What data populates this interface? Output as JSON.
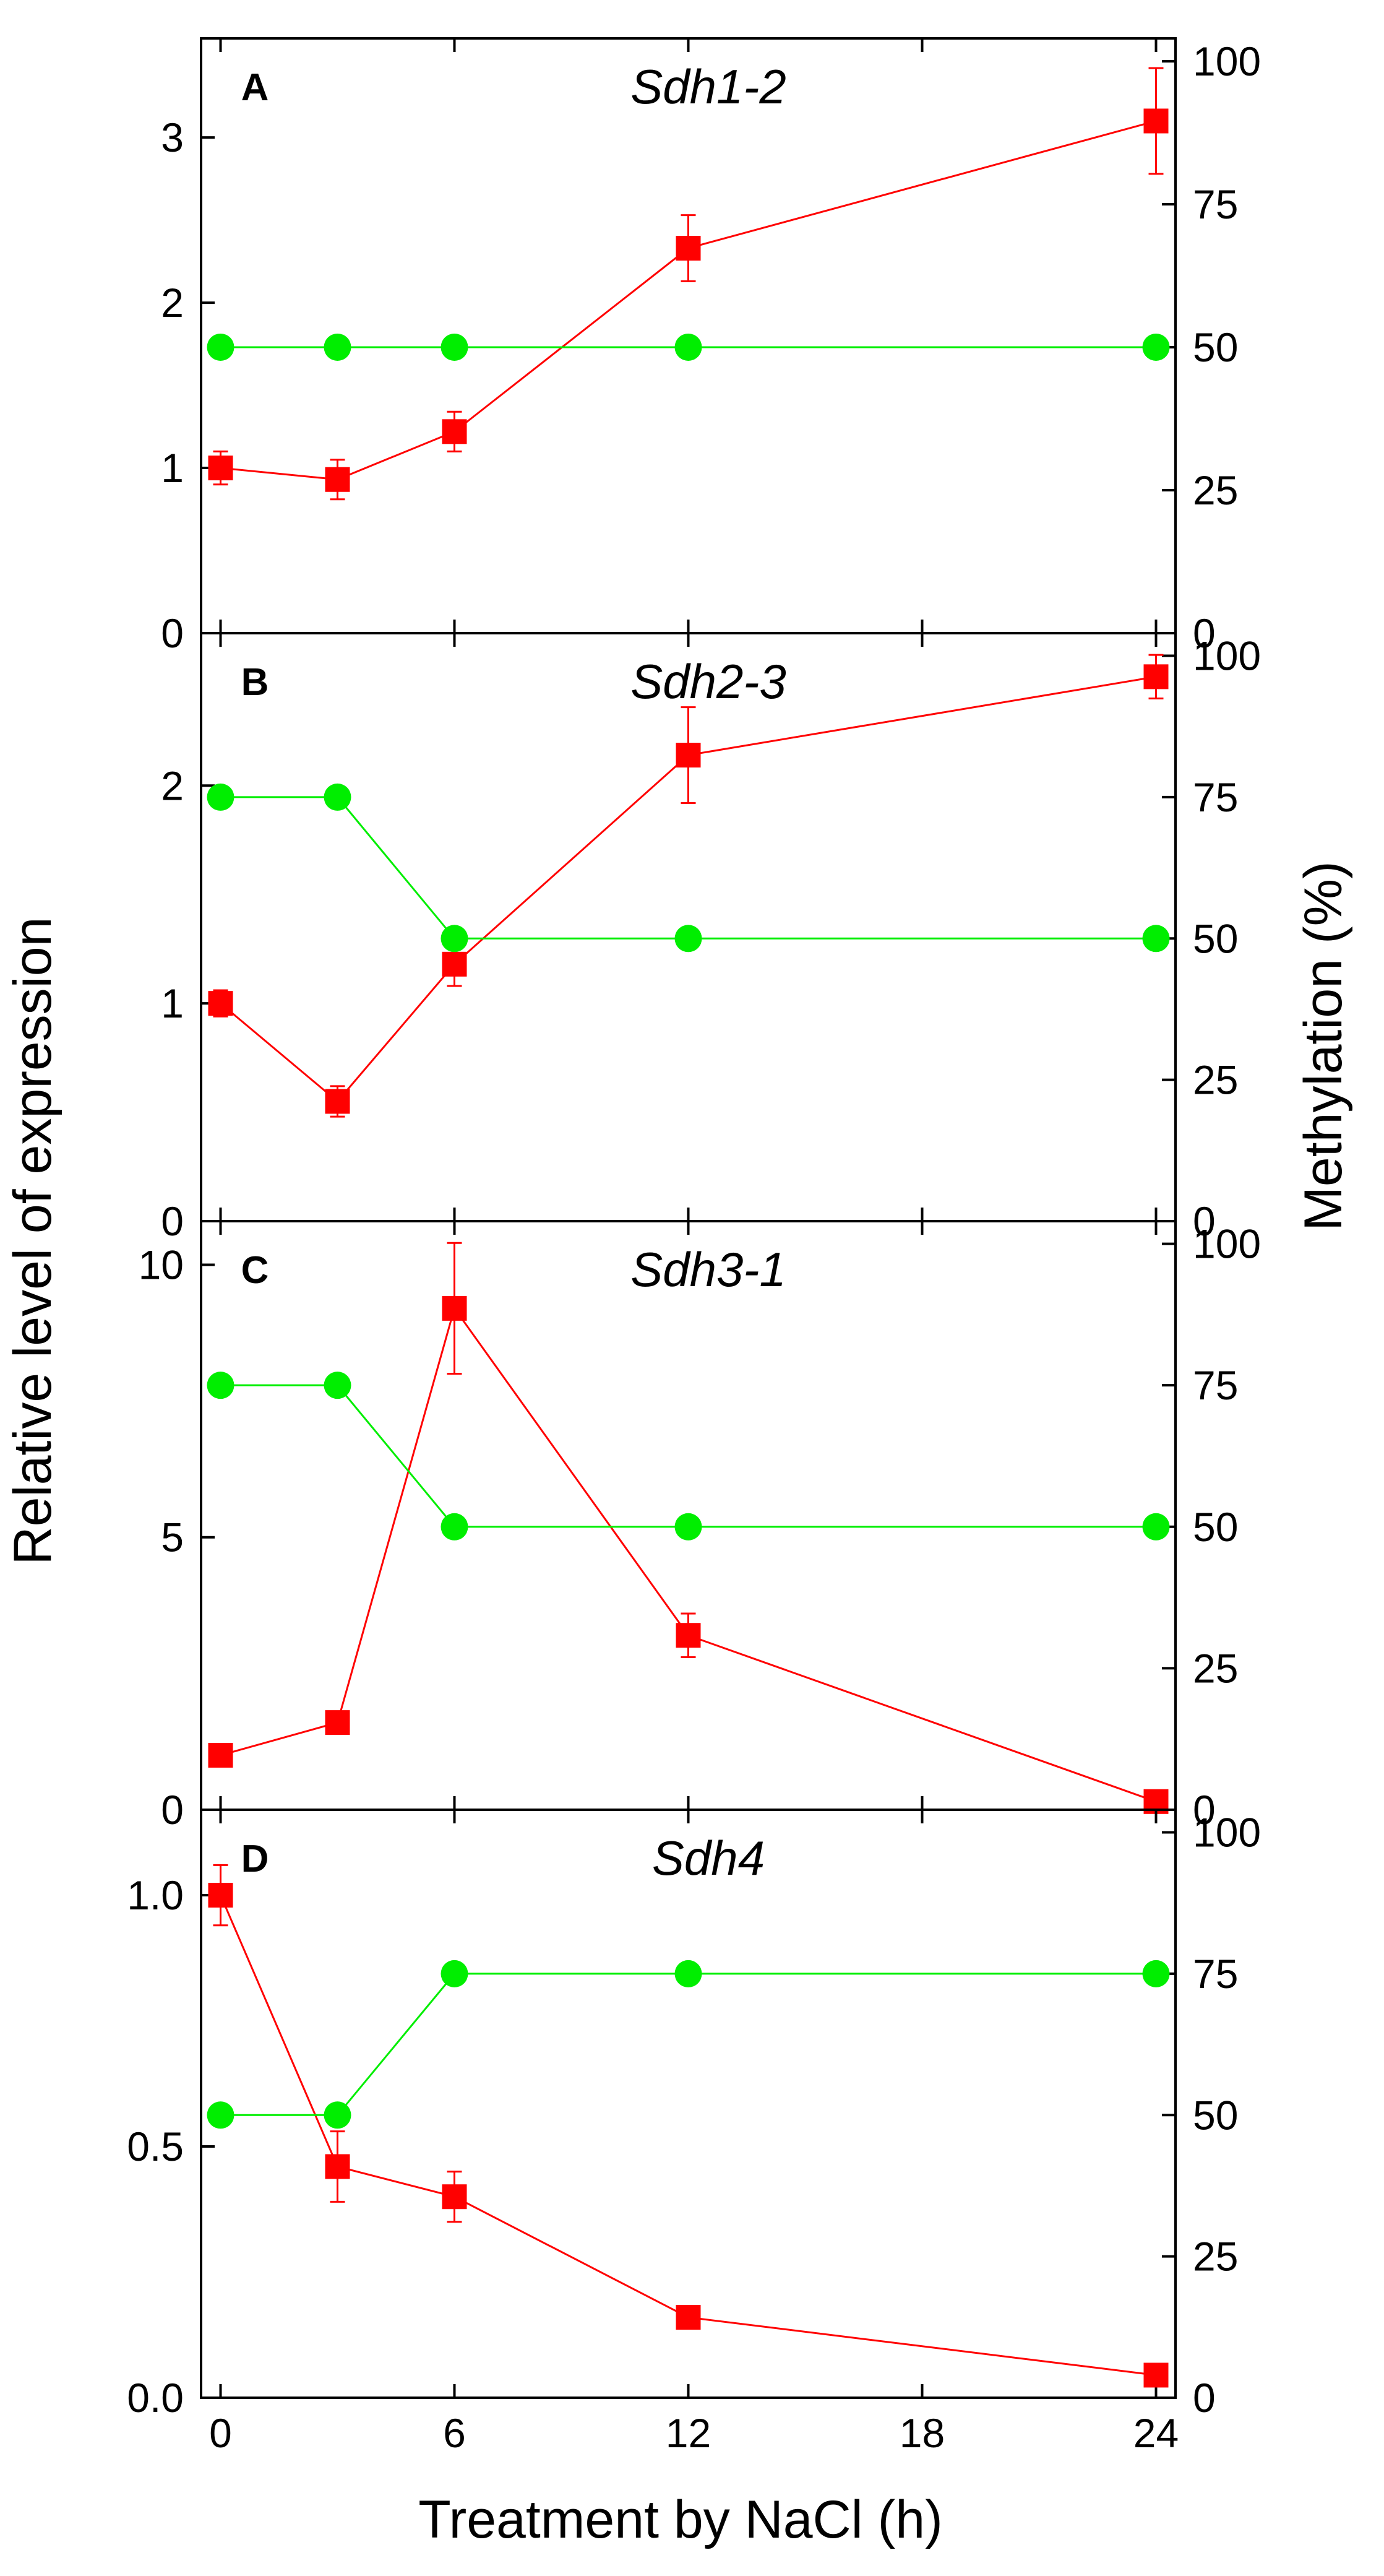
{
  "figure": {
    "ylabel_left": "Relative level of expression",
    "ylabel_right": "Methylation (%)",
    "xlabel": "Treatment by NaCl (h)"
  },
  "colors": {
    "expression": "#ff0000",
    "methylation": "#00ee00",
    "axis": "#000000"
  },
  "chart_data": [
    {
      "type": "line",
      "letter": "A",
      "title": "Sdh1-2",
      "x": [
        0,
        3,
        6,
        12,
        24
      ],
      "xlim": [
        -0.5,
        24.5
      ],
      "xticks": [
        0,
        6,
        12,
        18,
        24
      ],
      "xticklabels": [
        "0",
        "6",
        "12",
        "18",
        "24"
      ],
      "ylim_left": [
        0,
        3.6
      ],
      "yticks_left": [
        0,
        1,
        2,
        3
      ],
      "yticklabels_left": [
        "0",
        "1",
        "2",
        "3"
      ],
      "ylim_right": [
        0,
        104
      ],
      "yticks_right": [
        0,
        25,
        50,
        75,
        100
      ],
      "yticklabels_right": [
        "0",
        "25",
        "50",
        "75",
        "100"
      ],
      "series": [
        {
          "name": "Relative level of expression",
          "axis": "left",
          "marker": "square",
          "values": [
            1.0,
            0.93,
            1.22,
            2.33,
            3.1
          ],
          "errors": [
            0.1,
            0.12,
            0.12,
            0.2,
            0.32
          ]
        },
        {
          "name": "Methylation (%)",
          "axis": "right",
          "marker": "circle",
          "values": [
            50,
            50,
            50,
            50,
            50
          ]
        }
      ]
    },
    {
      "type": "line",
      "letter": "B",
      "title": "Sdh2-3",
      "x": [
        0,
        3,
        6,
        12,
        24
      ],
      "xlim": [
        -0.5,
        24.5
      ],
      "xticks": [
        0,
        6,
        12,
        18,
        24
      ],
      "xticklabels": [
        "0",
        "6",
        "12",
        "18",
        "24"
      ],
      "ylim_left": [
        0,
        2.7
      ],
      "yticks_left": [
        0,
        1,
        2
      ],
      "yticklabels_left": [
        "0",
        "1",
        "2"
      ],
      "ylim_right": [
        0,
        104
      ],
      "yticks_right": [
        0,
        25,
        50,
        75,
        100
      ],
      "yticklabels_right": [
        "0",
        "25",
        "50",
        "75",
        "100"
      ],
      "series": [
        {
          "name": "Relative level of expression",
          "axis": "left",
          "marker": "square",
          "values": [
            1.0,
            0.55,
            1.18,
            2.14,
            2.5
          ],
          "errors": [
            0.06,
            0.07,
            0.1,
            0.22,
            0.1
          ]
        },
        {
          "name": "Methylation (%)",
          "axis": "right",
          "marker": "circle",
          "values": [
            75,
            75,
            50,
            50,
            50
          ]
        }
      ]
    },
    {
      "type": "line",
      "letter": "C",
      "title": "Sdh3-1",
      "x": [
        0,
        3,
        6,
        12,
        24
      ],
      "xlim": [
        -0.5,
        24.5
      ],
      "xticks": [
        0,
        6,
        12,
        18,
        24
      ],
      "xticklabels": [
        "0",
        "6",
        "12",
        "18",
        "24"
      ],
      "ylim_left": [
        0,
        10.8
      ],
      "yticks_left": [
        0,
        5,
        10
      ],
      "yticklabels_left": [
        "0",
        "5",
        "10"
      ],
      "ylim_right": [
        0,
        104
      ],
      "yticks_right": [
        0,
        25,
        50,
        75,
        100
      ],
      "yticklabels_right": [
        "0",
        "25",
        "50",
        "75",
        "100"
      ],
      "series": [
        {
          "name": "Relative level of expression",
          "axis": "left",
          "marker": "square",
          "values": [
            1.0,
            1.6,
            9.2,
            3.2,
            0.15
          ],
          "errors": [
            0.05,
            0.1,
            1.2,
            0.4,
            0.05
          ]
        },
        {
          "name": "Methylation (%)",
          "axis": "right",
          "marker": "circle",
          "values": [
            75,
            75,
            50,
            50,
            50
          ]
        }
      ]
    },
    {
      "type": "line",
      "letter": "D",
      "title": "Sdh4",
      "x": [
        0,
        3,
        6,
        12,
        24
      ],
      "xlim": [
        -0.5,
        24.5
      ],
      "xticks": [
        0,
        6,
        12,
        18,
        24
      ],
      "xticklabels": [
        "0",
        "6",
        "12",
        "18",
        "24"
      ],
      "ylim_left": [
        0,
        1.17
      ],
      "yticks_left": [
        0,
        0.5,
        1.0
      ],
      "yticklabels_left": [
        "0.0",
        "0.5",
        "1.0"
      ],
      "ylim_right": [
        0,
        104
      ],
      "yticks_right": [
        0,
        25,
        50,
        75,
        100
      ],
      "yticklabels_right": [
        "0",
        "25",
        "50",
        "75",
        "100"
      ],
      "series": [
        {
          "name": "Relative level of expression",
          "axis": "left",
          "marker": "square",
          "values": [
            1.0,
            0.46,
            0.4,
            0.16,
            0.045
          ],
          "errors": [
            0.06,
            0.07,
            0.05,
            0.01,
            0.01
          ]
        },
        {
          "name": "Methylation (%)",
          "axis": "right",
          "marker": "circle",
          "values": [
            50,
            50,
            75,
            75,
            75
          ]
        }
      ]
    }
  ]
}
